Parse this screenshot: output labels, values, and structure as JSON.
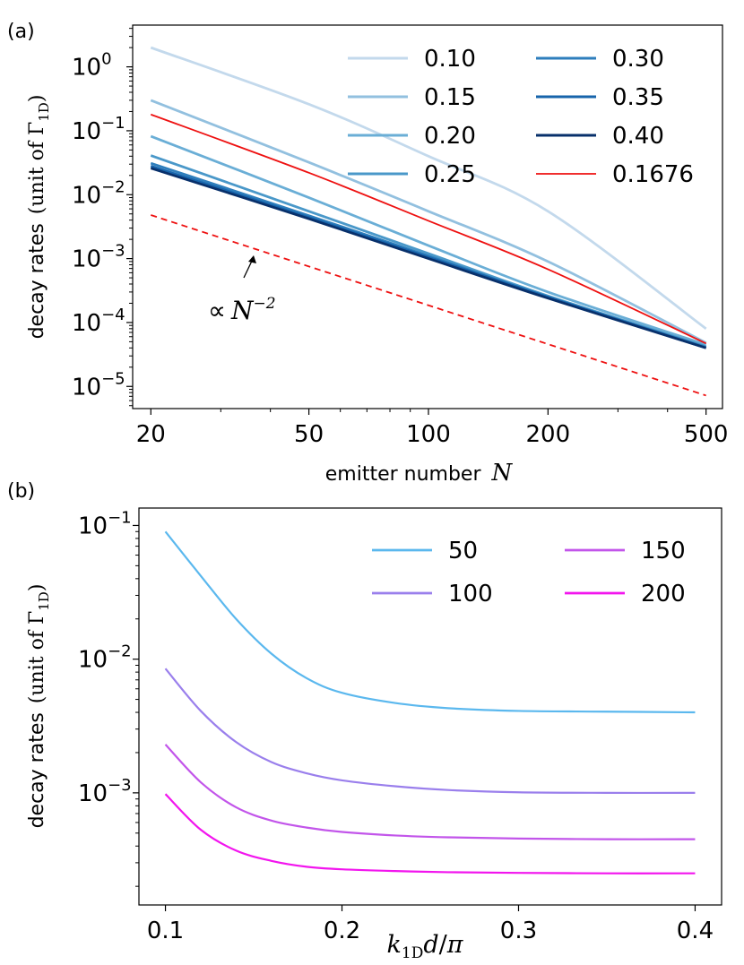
{
  "chart_data": [
    {
      "panel": "(a)",
      "type": "line",
      "xscale": "log",
      "yscale": "log",
      "xlim": [
        18,
        550
      ],
      "ylim": [
        4.5e-06,
        4.5
      ],
      "xticks": [
        20,
        50,
        100,
        200,
        500
      ],
      "xtick_labels": [
        "20",
        "50",
        "100",
        "200",
        "500"
      ],
      "yticks": [
        {
          "value": 1,
          "base": "10",
          "exp": "0"
        },
        {
          "value": 0.1,
          "base": "10",
          "exp": "−1"
        },
        {
          "value": 0.01,
          "base": "10",
          "exp": "−2"
        },
        {
          "value": 0.001,
          "base": "10",
          "exp": "−3"
        },
        {
          "value": 0.0001,
          "base": "10",
          "exp": "−4"
        },
        {
          "value": 1e-05,
          "base": "10",
          "exp": "−5"
        }
      ],
      "xlabel": {
        "text": "emitter number",
        "var": "N"
      },
      "ylabel": {
        "text": "decay rates",
        "unit_open": "(unit of ",
        "unit_symbol": "Γ",
        "unit_sub": "1D",
        "unit_close": ")"
      },
      "legend_location": "top-right",
      "legend_columns": 2,
      "series": [
        {
          "name": "0.10",
          "color": "#c3d9ec",
          "x": [
            20,
            50,
            100,
            200,
            500
          ],
          "y": [
            2.0,
            0.26,
            0.04,
            0.0055,
            8e-05
          ]
        },
        {
          "name": "0.15",
          "color": "#92c0df",
          "x": [
            20,
            50,
            100,
            200,
            500
          ],
          "y": [
            0.3,
            0.032,
            0.0055,
            0.0009,
            4.8e-05
          ]
        },
        {
          "name": "0.20",
          "color": "#6aaed6",
          "x": [
            20,
            50,
            100,
            200,
            500
          ],
          "y": [
            0.082,
            0.009,
            0.0016,
            0.0003,
            4.5e-05
          ]
        },
        {
          "name": "0.25",
          "color": "#4a98c9",
          "x": [
            20,
            50,
            100,
            200,
            500
          ],
          "y": [
            0.041,
            0.0055,
            0.0012,
            0.00026,
            4.2e-05
          ]
        },
        {
          "name": "0.30",
          "color": "#2e7ebc",
          "x": [
            20,
            50,
            100,
            200,
            500
          ],
          "y": [
            0.031,
            0.0047,
            0.0011,
            0.00025,
            4.1e-05
          ]
        },
        {
          "name": "0.35",
          "color": "#1764ab",
          "x": [
            20,
            50,
            100,
            200,
            500
          ],
          "y": [
            0.028,
            0.0044,
            0.00105,
            0.00025,
            4e-05
          ]
        },
        {
          "name": "0.40",
          "color": "#08306b",
          "x": [
            20,
            50,
            100,
            200,
            500
          ],
          "y": [
            0.026,
            0.0042,
            0.001,
            0.00024,
            4e-05
          ]
        },
        {
          "name": "0.1676",
          "color": "#ee1111",
          "x": [
            20,
            50,
            100,
            200,
            500
          ],
          "y": [
            0.18,
            0.022,
            0.0039,
            0.00068,
            4.7e-05
          ]
        }
      ],
      "reference_line": {
        "style": "dashed",
        "color": "#ee1111",
        "x": [
          20,
          500
        ],
        "y": [
          0.0048,
          7.2e-06
        ]
      },
      "annotation": {
        "prefix": "∝",
        "var": "N",
        "exp": "−2",
        "arrow_to": [
          35,
          0.0016
        ]
      }
    },
    {
      "panel": "(b)",
      "type": "line",
      "xscale": "linear",
      "yscale": "log",
      "xlim": [
        0.085,
        0.415
      ],
      "ylim": [
        0.000145,
        0.135
      ],
      "xticks": [
        0.1,
        0.2,
        0.3,
        0.4
      ],
      "xtick_labels": [
        "0.1",
        "0.2",
        "0.3",
        "0.4"
      ],
      "yticks": [
        {
          "value": 0.1,
          "base": "10",
          "exp": "−1"
        },
        {
          "value": 0.01,
          "base": "10",
          "exp": "−2"
        },
        {
          "value": 0.001,
          "base": "10",
          "exp": "−3"
        }
      ],
      "xlabel": {
        "var1": "k",
        "sub": "1D",
        "var2": "d",
        "slash": "/",
        "var3": "π"
      },
      "ylabel": {
        "text": "decay rates",
        "unit_open": "(unit of ",
        "unit_symbol": "Γ",
        "unit_sub": "1D",
        "unit_close": ")"
      },
      "legend_location": "top-right",
      "legend_columns": 2,
      "series": [
        {
          "name": "50",
          "color": "#5bb8ee",
          "x": [
            0.1,
            0.12,
            0.14,
            0.16,
            0.18,
            0.2,
            0.23,
            0.26,
            0.3,
            0.35,
            0.4
          ],
          "y": [
            0.09,
            0.042,
            0.02,
            0.011,
            0.0072,
            0.0056,
            0.0047,
            0.0043,
            0.0041,
            0.00405,
            0.004
          ]
        },
        {
          "name": "100",
          "color": "#9a7fec",
          "x": [
            0.1,
            0.12,
            0.14,
            0.16,
            0.18,
            0.2,
            0.23,
            0.26,
            0.3,
            0.35,
            0.4
          ],
          "y": [
            0.0085,
            0.0041,
            0.0024,
            0.0017,
            0.0014,
            0.00124,
            0.00112,
            0.00105,
            0.00101,
            0.001,
            0.001
          ]
        },
        {
          "name": "150",
          "color": "#c255ea",
          "x": [
            0.1,
            0.12,
            0.14,
            0.16,
            0.18,
            0.2,
            0.23,
            0.26,
            0.3,
            0.35,
            0.4
          ],
          "y": [
            0.0023,
            0.0012,
            0.00078,
            0.00062,
            0.00055,
            0.00051,
            0.00048,
            0.000465,
            0.000455,
            0.00045,
            0.00045
          ]
        },
        {
          "name": "200",
          "color": "#f215ee",
          "x": [
            0.1,
            0.12,
            0.14,
            0.16,
            0.18,
            0.2,
            0.23,
            0.26,
            0.3,
            0.35,
            0.4
          ],
          "y": [
            0.00098,
            0.00053,
            0.00037,
            0.00031,
            0.00028,
            0.000268,
            0.00026,
            0.000255,
            0.000252,
            0.00025,
            0.00025
          ]
        }
      ]
    }
  ]
}
